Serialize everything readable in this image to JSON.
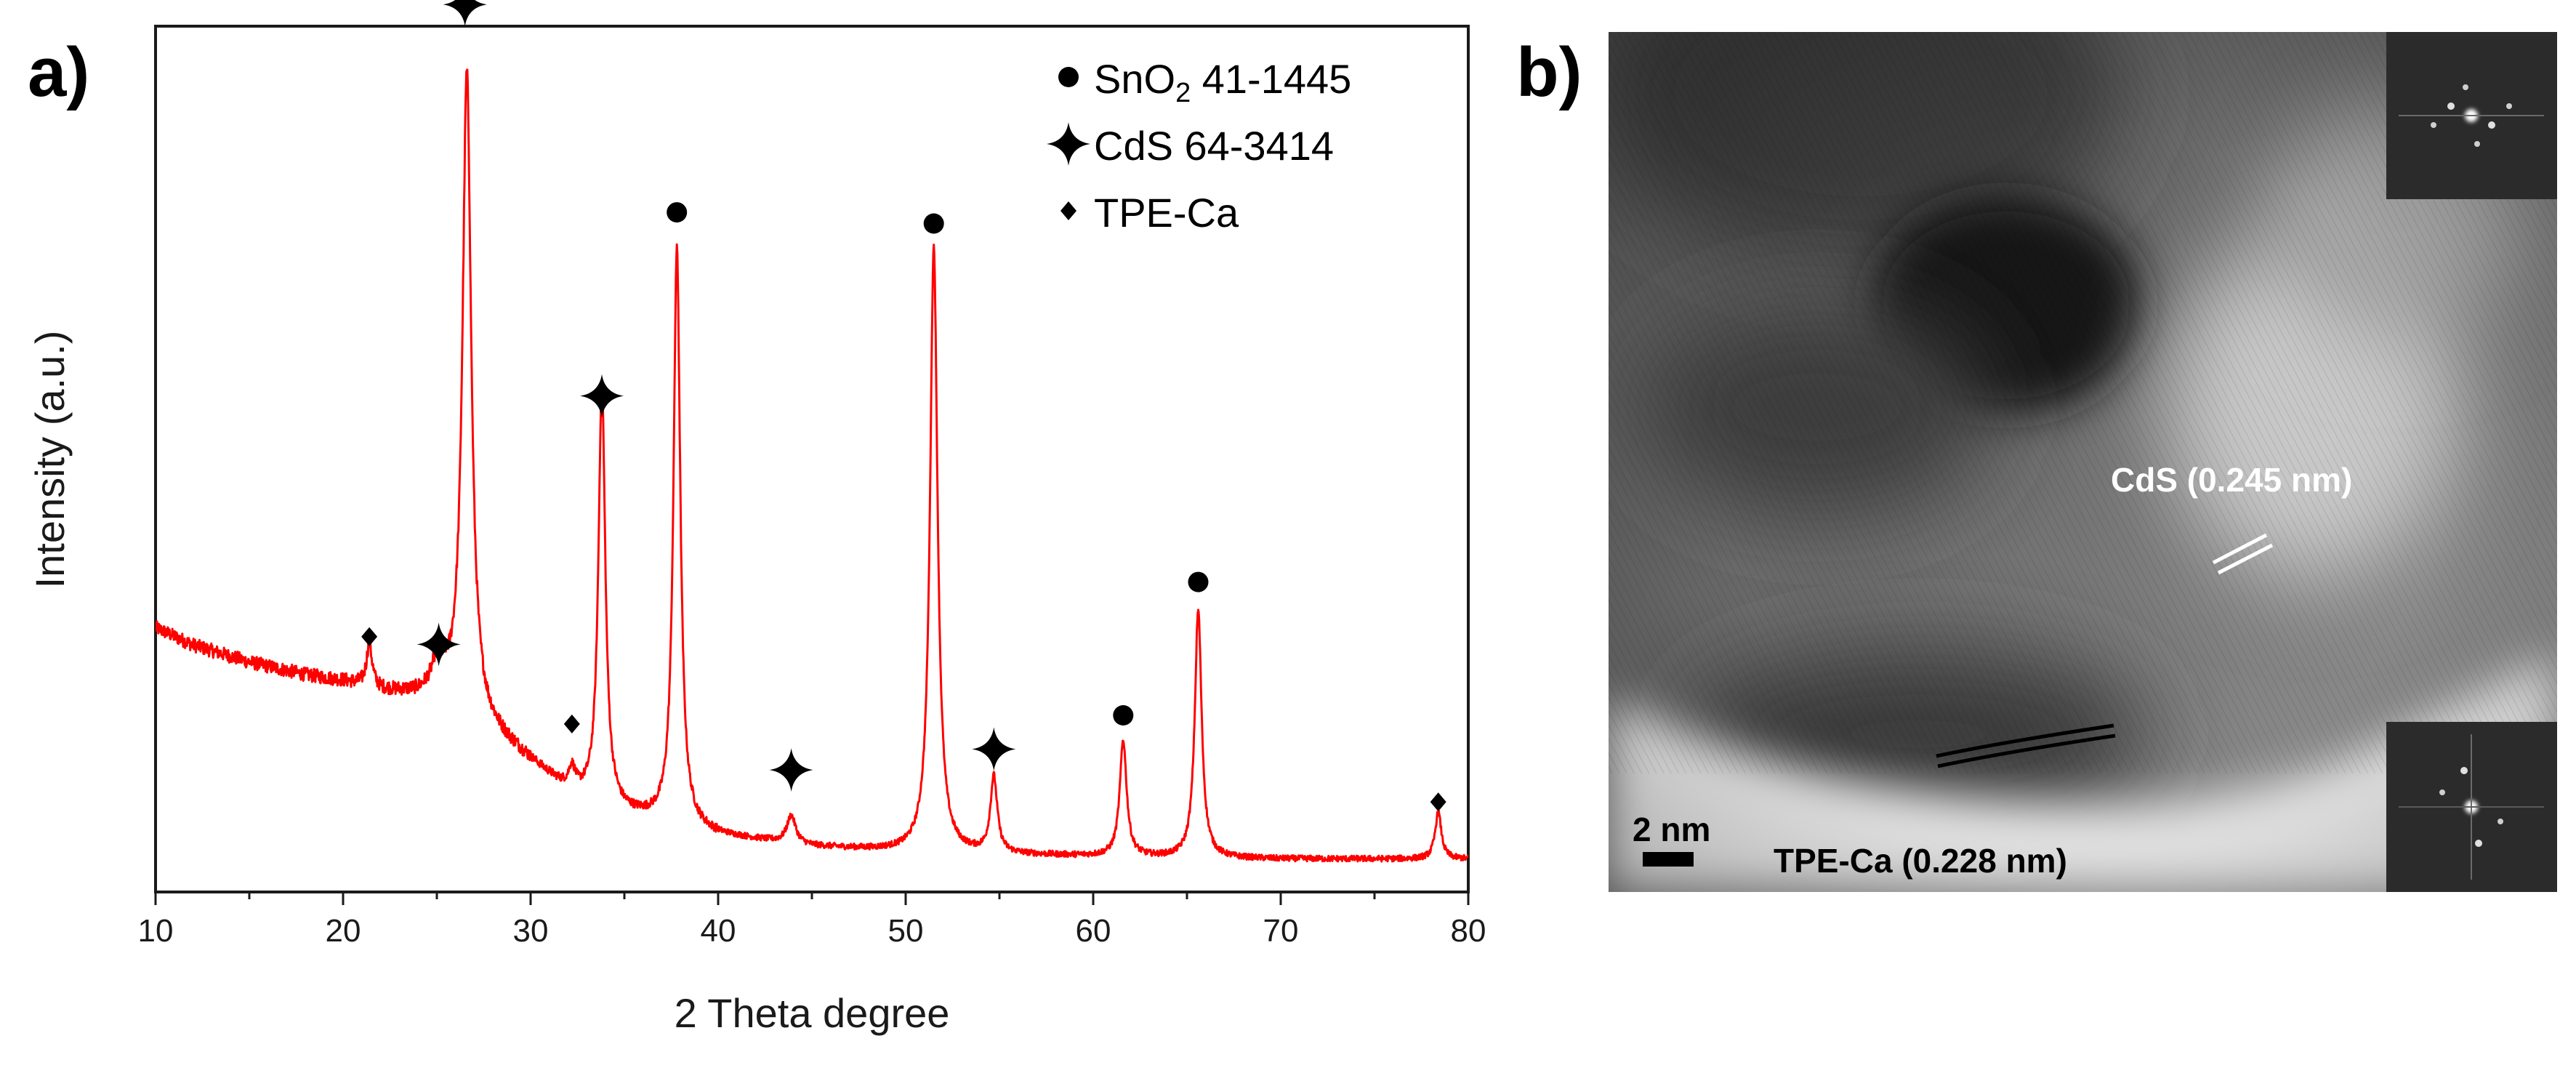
{
  "panel_a_label": "a)",
  "panel_b_label": "b)",
  "chart_data": {
    "type": "line",
    "title": "",
    "xlabel": "2 Theta degree",
    "ylabel": "Intensity (a.u.)",
    "xlim": [
      10,
      80
    ],
    "ylim": [
      0,
      100
    ],
    "x_ticks": [
      "10",
      "20",
      "30",
      "40",
      "50",
      "60",
      "70",
      "80"
    ],
    "line_color": "#ff0000",
    "baseline": {
      "x": [
        10,
        12,
        15,
        18,
        20,
        22,
        24,
        25,
        27,
        30,
        32,
        35,
        40,
        45,
        50,
        55,
        60,
        65,
        70,
        75,
        80
      ],
      "y": [
        30.5,
        28.5,
        26.5,
        25.0,
        24.3,
        23.2,
        22.6,
        22.8,
        20.0,
        15.0,
        11.5,
        9.0,
        6.5,
        5.2,
        4.6,
        4.3,
        4.1,
        3.9,
        3.8,
        3.8,
        3.8
      ]
    },
    "peaks": [
      {
        "x": 21.4,
        "height": 5.0,
        "width": 0.18
      },
      {
        "x": 25.1,
        "height": 3.8,
        "width": 0.35
      },
      {
        "x": 26.6,
        "height": 74.0,
        "width": 0.28
      },
      {
        "x": 32.2,
        "height": 2.5,
        "width": 0.22
      },
      {
        "x": 33.8,
        "height": 48.5,
        "width": 0.22
      },
      {
        "x": 37.8,
        "height": 66.5,
        "width": 0.22
      },
      {
        "x": 43.9,
        "height": 3.2,
        "width": 0.28
      },
      {
        "x": 51.5,
        "height": 70.0,
        "width": 0.24
      },
      {
        "x": 54.7,
        "height": 8.8,
        "width": 0.22
      },
      {
        "x": 61.6,
        "height": 13.4,
        "width": 0.22
      },
      {
        "x": 65.6,
        "height": 28.6,
        "width": 0.22
      },
      {
        "x": 78.4,
        "height": 5.4,
        "width": 0.2
      }
    ],
    "markers": [
      {
        "x": 21.4,
        "y": 29.5,
        "type": "diamond",
        "name": "tpe-ca-marker"
      },
      {
        "x": 25.1,
        "y": 28.6,
        "type": "star",
        "name": "cds-marker"
      },
      {
        "x": 26.5,
        "y": 102.5,
        "type": "star",
        "name": "cds-marker"
      },
      {
        "x": 32.2,
        "y": 19.4,
        "type": "diamond",
        "name": "tpe-ca-marker"
      },
      {
        "x": 33.8,
        "y": 57.3,
        "type": "star",
        "name": "cds-marker"
      },
      {
        "x": 37.8,
        "y": 78.5,
        "type": "circle",
        "name": "sno2-marker"
      },
      {
        "x": 43.9,
        "y": 14.1,
        "type": "star",
        "name": "cds-marker"
      },
      {
        "x": 51.5,
        "y": 77.2,
        "type": "circle",
        "name": "sno2-marker"
      },
      {
        "x": 54.7,
        "y": 16.5,
        "type": "star",
        "name": "cds-marker"
      },
      {
        "x": 61.6,
        "y": 20.4,
        "type": "circle",
        "name": "sno2-marker"
      },
      {
        "x": 65.6,
        "y": 35.8,
        "type": "circle",
        "name": "sno2-marker"
      },
      {
        "x": 78.4,
        "y": 10.4,
        "type": "diamond",
        "name": "tpe-ca-marker"
      }
    ],
    "legend": {
      "placement": "top-right",
      "entries": [
        {
          "marker": "circle",
          "label_main": "SnO",
          "label_sub": "2",
          "label_rest": " 41-1445"
        },
        {
          "marker": "star",
          "label": "CdS 64-3414"
        },
        {
          "marker": "diamond",
          "label": "TPE-Ca"
        }
      ]
    }
  },
  "tem_image": {
    "label_cds": "CdS (0.245 nm)",
    "label_tpe": "TPE-Ca (0.228 nm)",
    "label_tpe_suffix": ")",
    "scale_bar": "2 nm"
  }
}
